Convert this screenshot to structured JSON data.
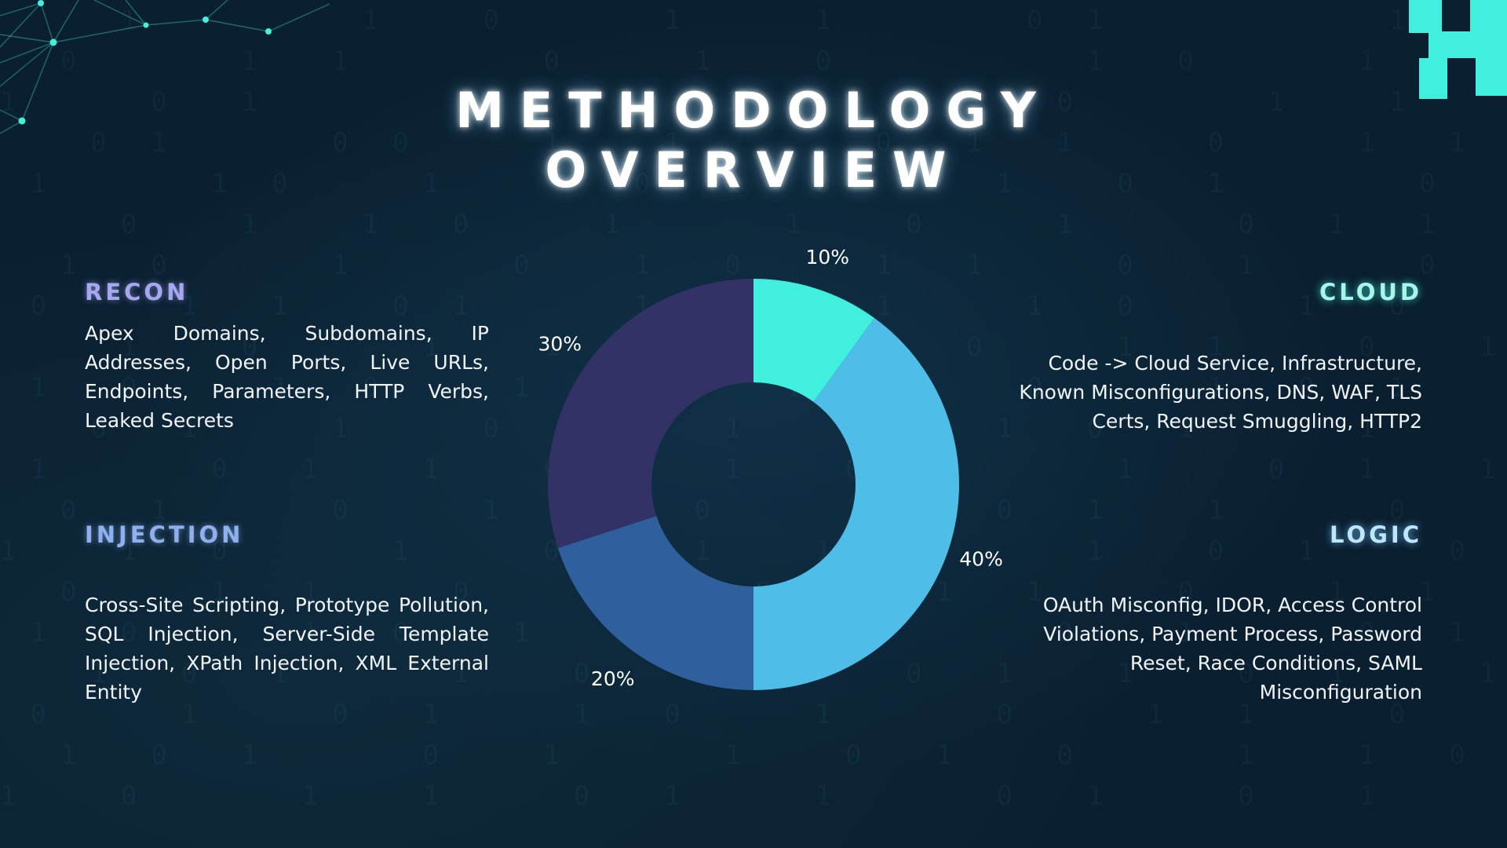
{
  "title": {
    "line1": "METHODOLOGY",
    "line2": "OVERVIEW"
  },
  "sections": {
    "recon": {
      "heading": "RECON",
      "text": "Apex Domains, Subdomains, IP Addresses, Open Ports, Live URLs, Endpoints, Parameters, HTTP Verbs, Leaked Secrets"
    },
    "injection": {
      "heading": "INJECTION",
      "text": "Cross-Site Scripting, Prototype Pollution, SQL Injection, Server-Side Template Injection, XPath Injection, XML External Entity"
    },
    "cloud": {
      "heading": "CLOUD",
      "text": "Code -> Cloud Service, Infrastructure, Known Misconfigurations, DNS, WAF, TLS Certs, Request Smuggling, HTTP2"
    },
    "logic": {
      "heading": "LOGIC",
      "text": "OAuth Misconfig, IDOR, Access Control Violations, Payment Process, Password Reset, Race Conditions, SAML Misconfiguration"
    }
  },
  "colors": {
    "background": "#0a1f30",
    "accent_teal": "#40efde",
    "slice_teal": "#40efde",
    "slice_sky": "#4ebde8",
    "slice_blue": "#2f609d",
    "slice_indigo": "#323266"
  },
  "icons": {
    "top_left": "network-graph-icon",
    "top_right": "pixel-logo-icon"
  },
  "chart_data": {
    "type": "pie",
    "donut": true,
    "start": "top",
    "direction": "clockwise",
    "slices": [
      {
        "value": 10,
        "label": "10%",
        "color": "#40efde"
      },
      {
        "value": 40,
        "label": "40%",
        "color": "#4ebde8"
      },
      {
        "value": 20,
        "label": "20%",
        "color": "#2f609d"
      },
      {
        "value": 30,
        "label": "30%",
        "color": "#323266"
      }
    ]
  }
}
